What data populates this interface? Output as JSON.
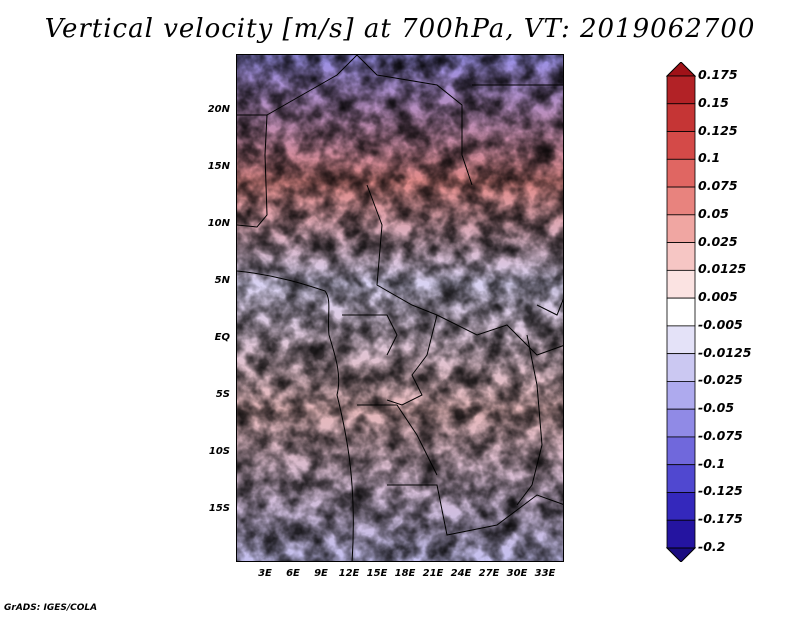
{
  "title": "Vertical velocity [m/s] at 700hPa, VT: 2019062700",
  "credit": "GrADS: IGES/COLA",
  "map": {
    "lat_axis_labels": [
      "20N",
      "15N",
      "10N",
      "5N",
      "EQ",
      "5S",
      "10S",
      "15S"
    ],
    "lon_axis_labels": [
      "3E",
      "6E",
      "9E",
      "12E",
      "15E",
      "18E",
      "21E",
      "24E",
      "27E",
      "30E",
      "33E"
    ],
    "field": "vertical velocity",
    "units": "m/s",
    "level": "700hPa"
  },
  "colorbar": {
    "labels": [
      "0.175",
      "0.15",
      "0.125",
      "0.1",
      "0.075",
      "0.05",
      "0.025",
      "0.0125",
      "0.005",
      "-0.005",
      "-0.0125",
      "-0.025",
      "-0.05",
      "-0.075",
      "-0.1",
      "-0.125",
      "-0.175",
      "-0.2"
    ],
    "colors": [
      "#a01218",
      "#b22226",
      "#c53535",
      "#d44a48",
      "#e06662",
      "#e8837e",
      "#f0a6a2",
      "#f6c6c4",
      "#fbe3e2",
      "#ffffff",
      "#e4e2f8",
      "#cbc8f2",
      "#aeaaee",
      "#908ae6",
      "#7068dc",
      "#5048d0",
      "#3428bc",
      "#2414a0",
      "#1a0c80"
    ]
  }
}
